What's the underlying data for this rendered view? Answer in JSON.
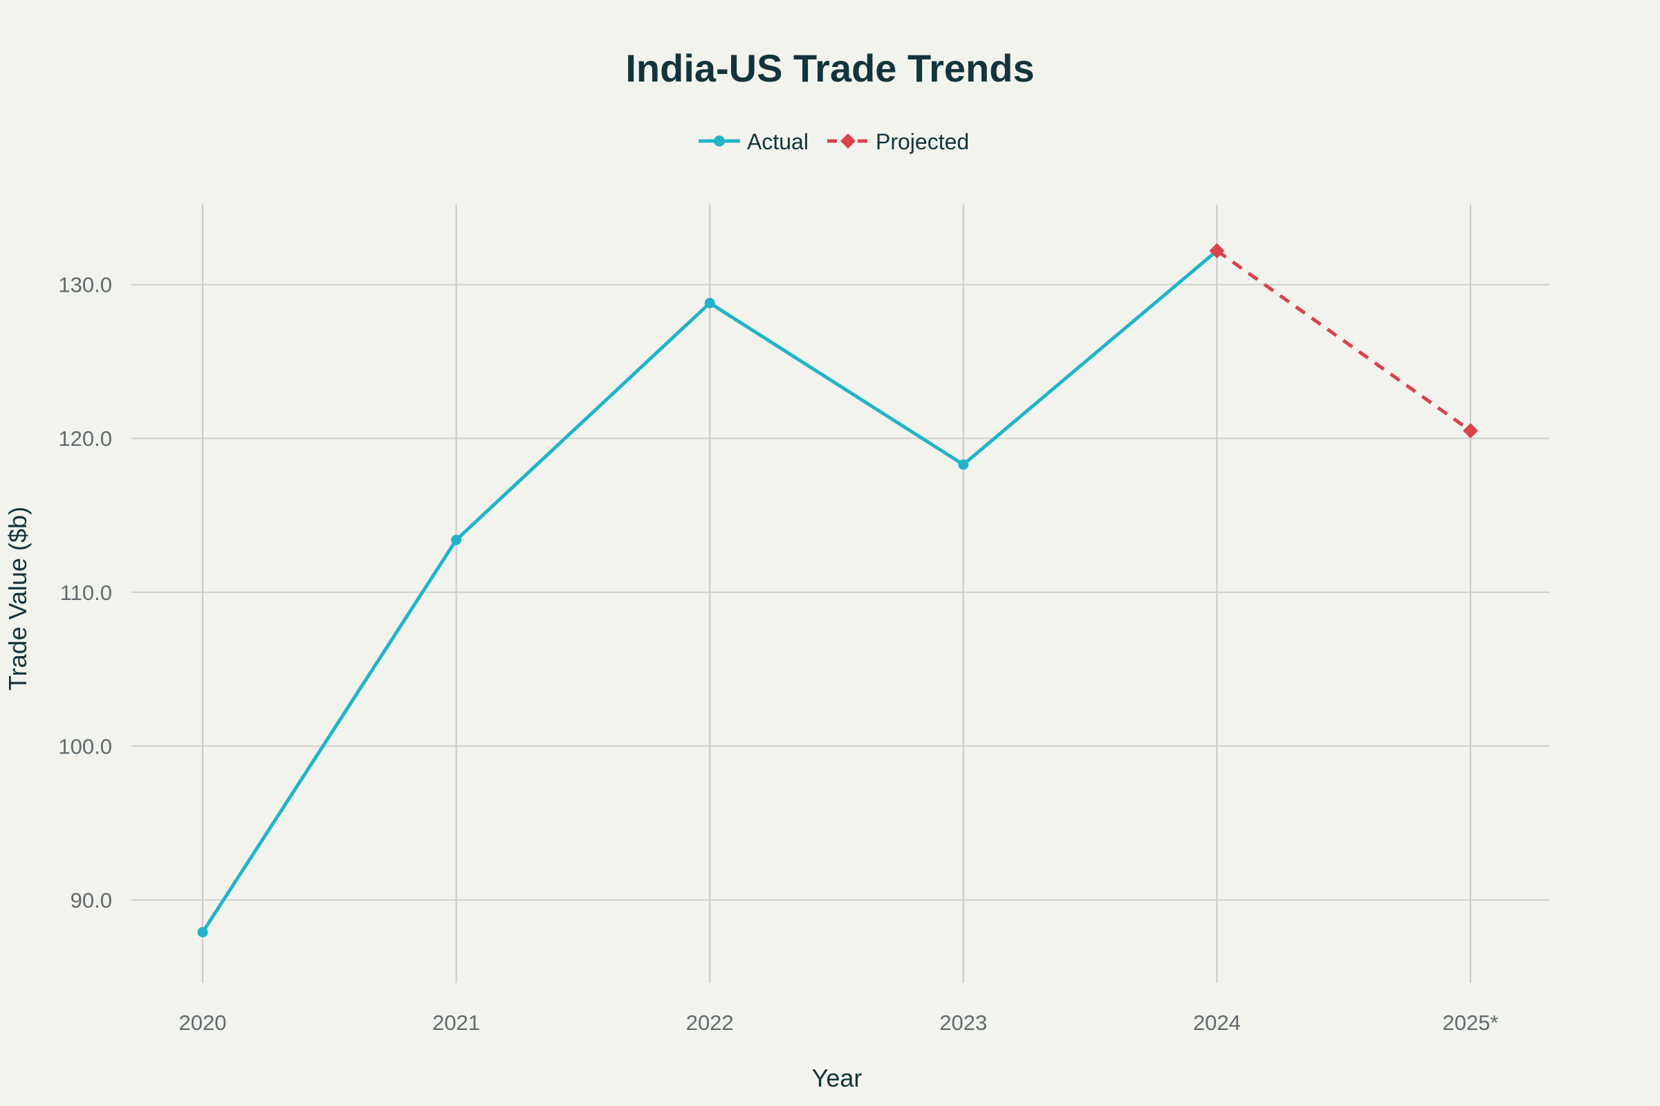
{
  "colors": {
    "background": "#f3f3ee",
    "actual": "#21b4c8",
    "projected": "#d9434a",
    "text": "#13343b",
    "tick": "#5f6b6d"
  },
  "chart_data": {
    "type": "line",
    "title": "India-US Trade Trends",
    "xlabel": "Year",
    "ylabel": "Trade Value ($b)",
    "categories": [
      "2020",
      "2021",
      "2022",
      "2023",
      "2024",
      "2025*"
    ],
    "y_ticks": [
      90.0,
      100.0,
      110.0,
      120.0,
      130.0
    ],
    "y_tick_labels": [
      "90.0",
      "100.0",
      "110.0",
      "120.0",
      "130.0"
    ],
    "ylim": [
      84.6,
      135.2
    ],
    "grid": true,
    "legend_position": "top-center",
    "series": [
      {
        "name": "Actual",
        "color": "#21b4c8",
        "dash": "solid",
        "marker": "circle",
        "x": [
          "2020",
          "2021",
          "2022",
          "2023",
          "2024"
        ],
        "values": [
          87.9,
          113.4,
          128.8,
          118.3,
          132.2
        ]
      },
      {
        "name": "Projected",
        "color": "#d9434a",
        "dash": "dashed",
        "marker": "diamond",
        "x": [
          "2024",
          "2025*"
        ],
        "values": [
          132.2,
          120.5
        ]
      }
    ]
  }
}
